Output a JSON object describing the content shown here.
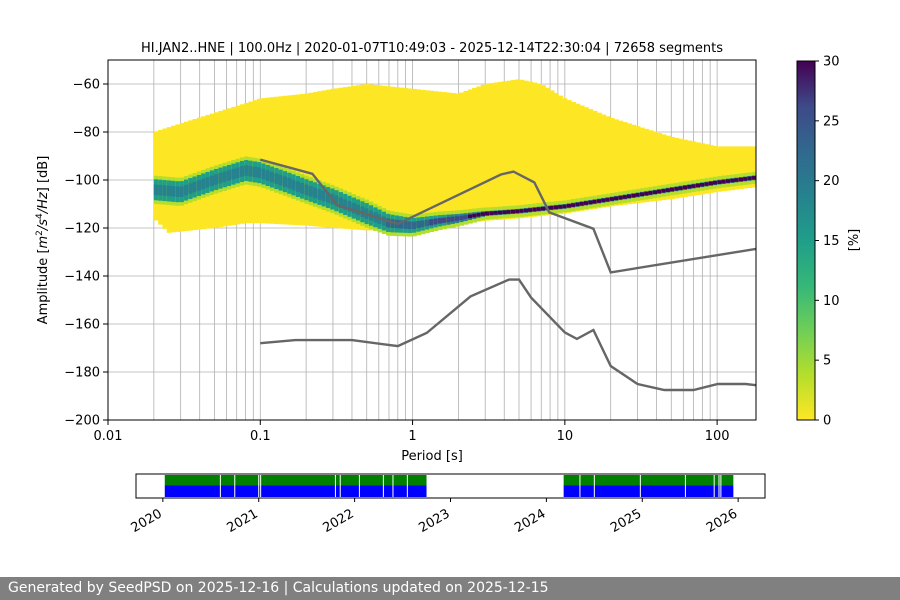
{
  "chart_data": {
    "type": "heatmap",
    "title": "HI.JAN2..HNE | 100.0Hz | 2020-01-07T10:49:03 - 2025-12-14T22:30:04 | 72658 segments",
    "xlabel": "Period [s]",
    "ylabel_prefix": "Amplitude [",
    "ylabel_suffix": "] [dB]",
    "ylabel_unit_m": "m",
    "ylabel_unit_exp2": "2",
    "ylabel_unit_s": "/s",
    "ylabel_unit_exp4": "4",
    "ylabel_unit_hz": "/Hz",
    "x_scale": "log",
    "xlim": [
      0.01,
      180
    ],
    "ylim": [
      -200,
      -50
    ],
    "x_ticks": [
      0.01,
      0.1,
      1,
      10,
      100
    ],
    "x_tick_labels": [
      "0.01",
      "0.1",
      "1",
      "10",
      "100"
    ],
    "y_ticks": [
      -200,
      -180,
      -160,
      -140,
      -120,
      -100,
      -80,
      -60
    ],
    "y_tick_labels": [
      "−200",
      "−180",
      "−160",
      "−140",
      "−120",
      "−100",
      "−80",
      "−60"
    ],
    "grid": true,
    "colorbar": {
      "label": "[%]",
      "range": [
        0,
        30
      ],
      "ticks": [
        0,
        5,
        10,
        15,
        20,
        25,
        30
      ],
      "tick_labels": [
        "0",
        "5",
        "10",
        "15",
        "20",
        "25",
        "30"
      ],
      "colormap": "viridis_r"
    },
    "pdf_mode_curve": {
      "x": [
        0.02,
        0.03,
        0.05,
        0.08,
        0.1,
        0.15,
        0.2,
        0.3,
        0.5,
        0.7,
        1,
        1.5,
        2,
        3,
        5,
        7,
        10,
        20,
        50,
        100,
        180
      ],
      "y": [
        -104,
        -105,
        -100,
        -96,
        -97,
        -101,
        -104,
        -108,
        -114,
        -118,
        -119,
        -117,
        -116,
        -114,
        -113,
        -112,
        -111,
        -108,
        -104,
        -101,
        -99
      ]
    },
    "pdf_spread": {
      "x": [
        0.02,
        0.025,
        0.05,
        0.08,
        0.1,
        0.2,
        0.3,
        0.5,
        1,
        2,
        3,
        5,
        7,
        10,
        20,
        50,
        100,
        180
      ],
      "upper": [
        -80,
        -78,
        -72,
        -68,
        -66,
        -64,
        -62,
        -60,
        -62,
        -64,
        -60,
        -58,
        -60,
        -66,
        -74,
        -82,
        -86,
        -86
      ],
      "lower": [
        -116,
        -122,
        -120,
        -118,
        -118,
        -119,
        -120,
        -121,
        -121,
        -118,
        -117,
        -116,
        -115,
        -114,
        -111,
        -108,
        -105,
        -103
      ]
    },
    "series": [
      {
        "x": [
          0.1,
          0.22,
          0.32,
          0.8,
          3.8,
          4.6,
          6.3,
          7.9,
          15.4,
          20,
          180
        ],
        "values": [
          -91.5,
          -97.4,
          -110.5,
          -118.3,
          -97.7,
          -96.5,
          -101,
          -113.5,
          -120.3,
          -138.5,
          -128.7
        ]
      },
      {
        "x": [
          0.1,
          0.17,
          0.4,
          0.8,
          1.24,
          2.4,
          4.3,
          5.0,
          6.0,
          10,
          12,
          15.4,
          20,
          30,
          45,
          70,
          101,
          154,
          180
        ],
        "values": [
          -168,
          -166.7,
          -166.7,
          -169.2,
          -163.7,
          -148.5,
          -141.5,
          -141.5,
          -149,
          -163.5,
          -166.2,
          -162.5,
          -177.5,
          -185,
          -187.5,
          -187.5,
          -185,
          -185,
          -185.5
        ]
      }
    ],
    "timeline": {
      "year_labels": [
        "2020",
        "2021",
        "2022",
        "2023",
        "2024",
        "2025",
        "2026"
      ],
      "year_values": [
        2020,
        2021,
        2022,
        2023,
        2024,
        2025,
        2026
      ],
      "range": [
        2019.72,
        2026.28
      ],
      "coverage": [
        [
          2020.02,
          2022.75
        ],
        [
          2024.18,
          2025.95
        ]
      ],
      "gaps": [
        2020.6,
        2020.75,
        2021.0,
        2021.02,
        2021.8,
        2021.85,
        2022.05,
        2022.3,
        2022.4,
        2022.55,
        2024.35,
        2024.5,
        2024.98,
        2025.45,
        2025.75,
        2025.8,
        2025.82
      ],
      "colors": {
        "frame": "#000000",
        "upper": "#008000",
        "lower": "#0000ff"
      }
    },
    "line_color": "#666666"
  },
  "footer": {
    "text": "Generated by SeedPSD on 2025-12-16 | Calculations updated on 2025-12-15"
  }
}
